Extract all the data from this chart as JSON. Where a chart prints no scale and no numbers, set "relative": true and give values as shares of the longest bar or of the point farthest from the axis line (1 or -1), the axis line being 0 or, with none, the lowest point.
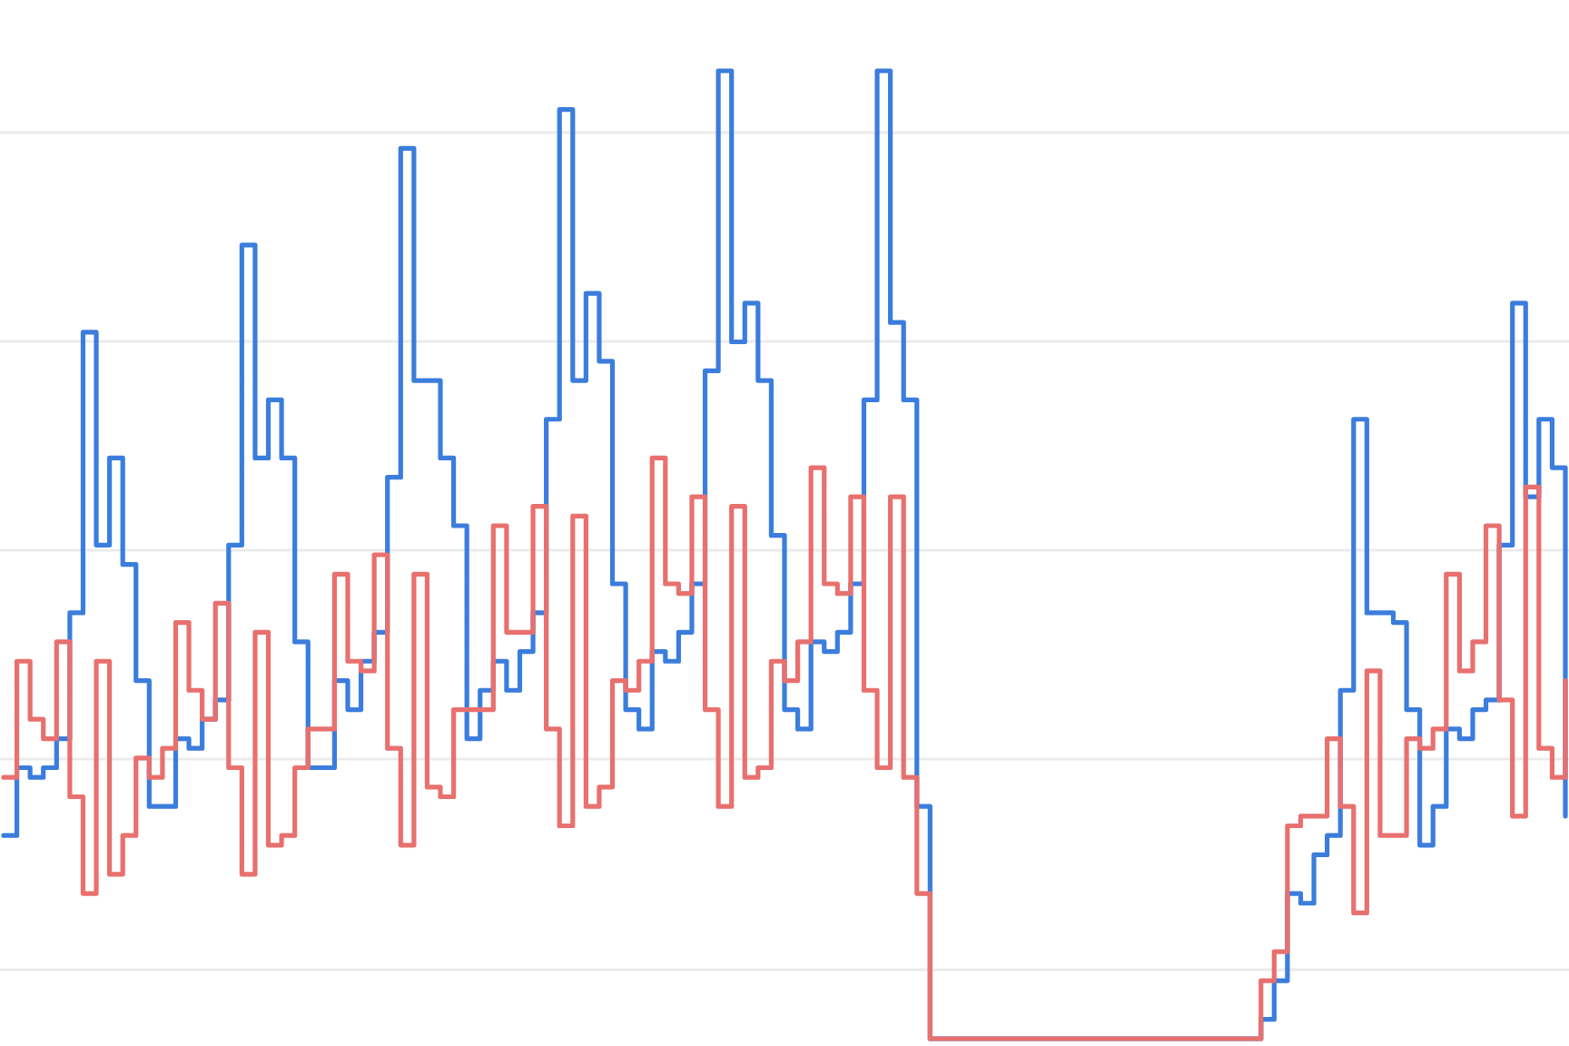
{
  "chart_data": {
    "type": "step",
    "relative": true,
    "grid": true,
    "categories": [
      null,
      null,
      null,
      null,
      null,
      null,
      null,
      null,
      null,
      null,
      null,
      null,
      null,
      null,
      null,
      null,
      null,
      null,
      null,
      null,
      null,
      null,
      null,
      null,
      null,
      null,
      null,
      null,
      null,
      null,
      null,
      null,
      null,
      null,
      null,
      null,
      null,
      null,
      null,
      null,
      null,
      null,
      null,
      null,
      null,
      null,
      null,
      null,
      null,
      null,
      null,
      null,
      null,
      null,
      null,
      null,
      null,
      null,
      null,
      null,
      null,
      null,
      null,
      null,
      null,
      null,
      null,
      null,
      null,
      null,
      null,
      null,
      null,
      null,
      null,
      null,
      null,
      null,
      null,
      null,
      null,
      null,
      null,
      null,
      null,
      null,
      null,
      null,
      null,
      null,
      null,
      null,
      null,
      null,
      null,
      null,
      null,
      null,
      null,
      null,
      null,
      null,
      null,
      null,
      null,
      null,
      null,
      null,
      null,
      null,
      null,
      null,
      null,
      null,
      null,
      null,
      null,
      null,
      null
    ],
    "series": [
      {
        "color": "#3b7ddd",
        "values": [
          0.21,
          0.28,
          0.27,
          0.28,
          0.31,
          0.44,
          0.73,
          0.51,
          0.6,
          0.49,
          0.37,
          0.24,
          0.24,
          0.31,
          0.3,
          0.33,
          0.35,
          0.51,
          0.82,
          0.6,
          0.66,
          0.6,
          0.41,
          0.28,
          0.28,
          0.37,
          0.34,
          0.39,
          0.42,
          0.58,
          0.92,
          0.68,
          0.68,
          0.6,
          0.53,
          0.31,
          0.36,
          0.39,
          0.36,
          0.4,
          0.44,
          0.64,
          0.96,
          0.68,
          0.77,
          0.7,
          0.47,
          0.34,
          0.32,
          0.4,
          0.39,
          0.42,
          0.47,
          0.69,
          1.0,
          0.72,
          0.76,
          0.68,
          0.52,
          0.34,
          0.32,
          0.41,
          0.4,
          0.42,
          0.47,
          0.66,
          1.0,
          0.74,
          0.66,
          0.24,
          0,
          0,
          0,
          0,
          0,
          0,
          0,
          0,
          0,
          0,
          0,
          0,
          0,
          0,
          0,
          0,
          0,
          0,
          0,
          0,
          0,
          0,
          0,
          0,
          0,
          0.02,
          0.06,
          0.15,
          0.14,
          0.19,
          0.21,
          0.36,
          0.64,
          0.44,
          0.44,
          0.43,
          0.34,
          0.2,
          0.24,
          0.32,
          0.31,
          0.34,
          0.35,
          0.51,
          0.76,
          0.56,
          0.64,
          0.59,
          0.23
        ]
      },
      {
        "color": "#e8706e",
        "values": [
          0.27,
          0.39,
          0.33,
          0.31,
          0.41,
          0.25,
          0.15,
          0.39,
          0.17,
          0.21,
          0.29,
          0.27,
          0.3,
          0.43,
          0.36,
          0.33,
          0.45,
          0.28,
          0.17,
          0.42,
          0.2,
          0.21,
          0.28,
          0.32,
          0.32,
          0.48,
          0.39,
          0.38,
          0.5,
          0.3,
          0.2,
          0.48,
          0.26,
          0.25,
          0.34,
          0.34,
          0.34,
          0.53,
          0.42,
          0.42,
          0.55,
          0.32,
          0.22,
          0.54,
          0.24,
          0.26,
          0.37,
          0.36,
          0.39,
          0.6,
          0.47,
          0.46,
          0.56,
          0.34,
          0.24,
          0.55,
          0.27,
          0.28,
          0.39,
          0.37,
          0.41,
          0.59,
          0.47,
          0.46,
          0.56,
          0.36,
          0.28,
          0.56,
          0.27,
          0.15,
          0,
          0,
          0,
          0,
          0,
          0,
          0,
          0,
          0,
          0,
          0,
          0,
          0,
          0,
          0,
          0,
          0,
          0,
          0,
          0,
          0,
          0,
          0,
          0,
          0,
          0.06,
          0.09,
          0.22,
          0.23,
          0.23,
          0.31,
          0.24,
          0.13,
          0.38,
          0.21,
          0.21,
          0.31,
          0.3,
          0.32,
          0.48,
          0.38,
          0.41,
          0.53,
          0.35,
          0.23,
          0.57,
          0.3,
          0.27,
          0.37
        ]
      }
    ]
  }
}
